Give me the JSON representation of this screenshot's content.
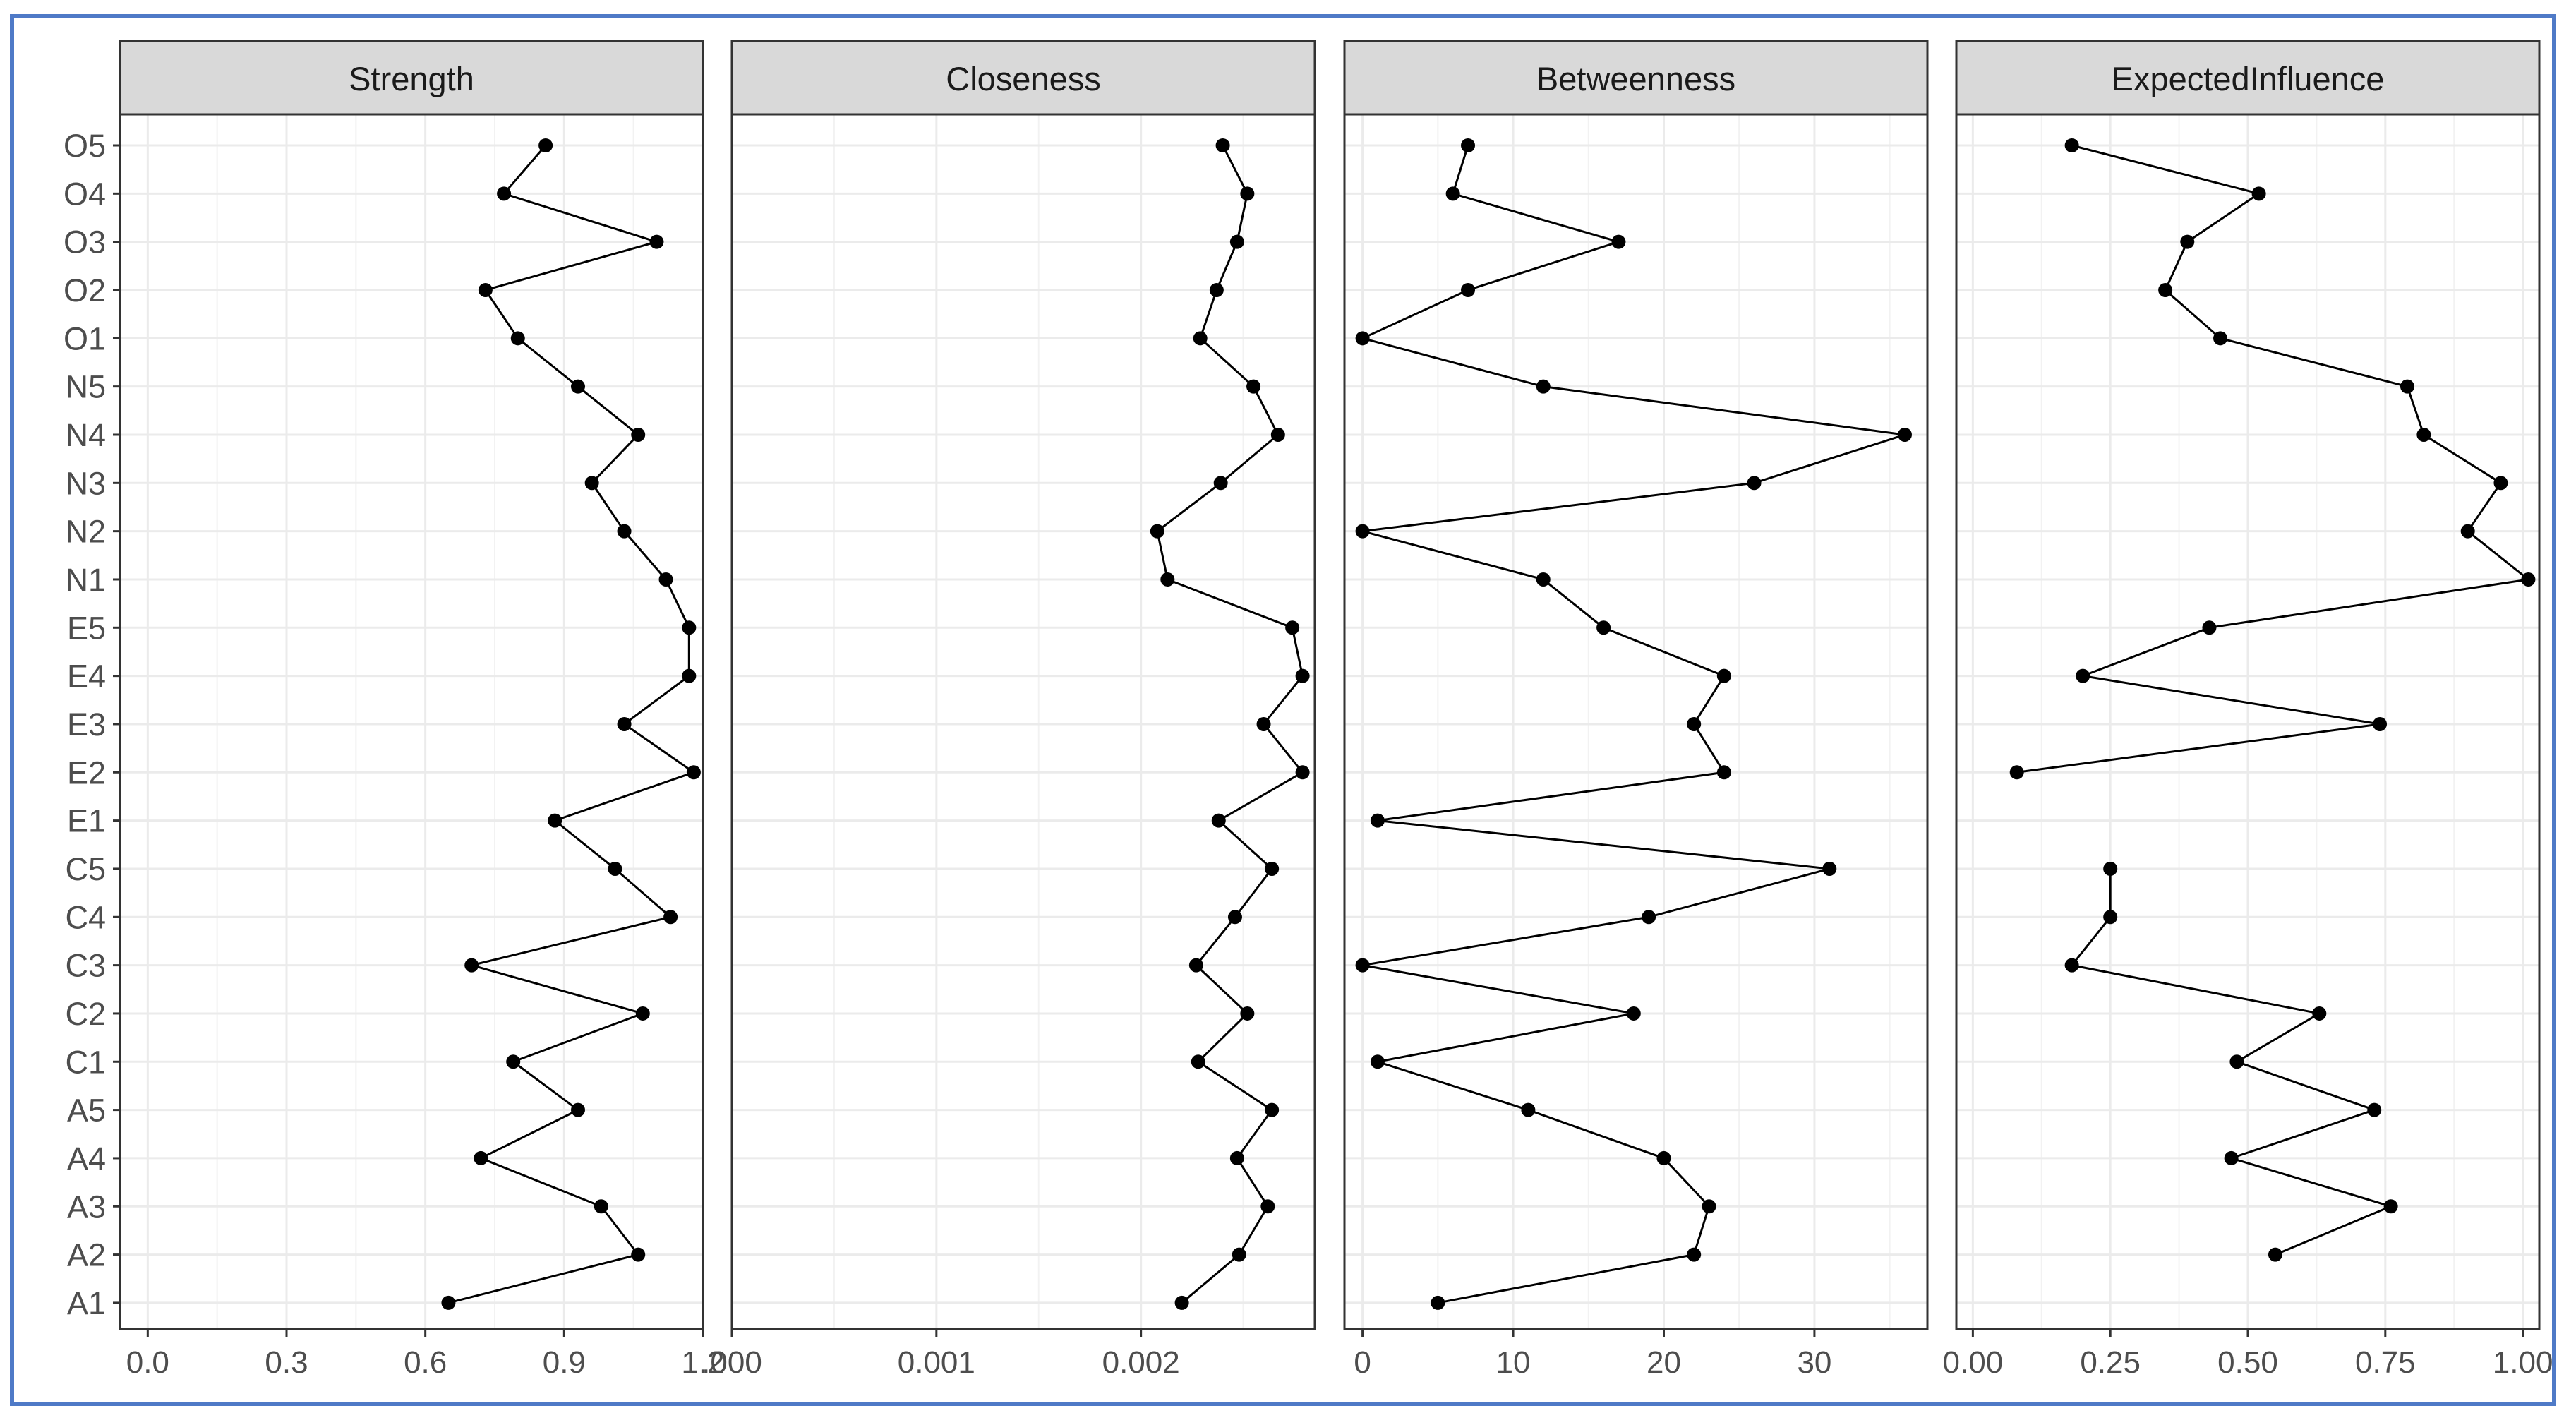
{
  "chart_data": {
    "type": "line",
    "orientation": "horizontal-facets",
    "categories": [
      "A1",
      "A2",
      "A3",
      "A4",
      "A5",
      "C1",
      "C2",
      "C3",
      "C4",
      "C5",
      "E1",
      "E2",
      "E3",
      "E4",
      "E5",
      "N1",
      "N2",
      "N3",
      "N4",
      "N5",
      "O1",
      "O2",
      "O3",
      "O4",
      "O5"
    ],
    "facets": [
      {
        "title": "Strength",
        "xlim": [
          -0.06,
          1.2
        ],
        "ticks": [
          0.0,
          0.3,
          0.6,
          0.9,
          1.2
        ],
        "tick_labels": [
          "0.0",
          "0.3",
          "0.6",
          "0.9",
          "1.2"
        ],
        "values": [
          0.65,
          1.06,
          0.98,
          0.72,
          0.93,
          0.79,
          1.07,
          0.7,
          1.13,
          1.01,
          0.88,
          1.18,
          1.03,
          1.17,
          1.17,
          1.12,
          1.03,
          0.96,
          1.06,
          0.93,
          0.8,
          0.73,
          1.1,
          0.77,
          0.86
        ]
      },
      {
        "title": "Closeness",
        "xlim": [
          0.0,
          0.00285
        ],
        "ticks": [
          0.0,
          0.001,
          0.002
        ],
        "tick_labels": [
          ".000",
          "0.001",
          "0.002"
        ],
        "values": [
          0.0022,
          0.00248,
          0.00262,
          0.00247,
          0.00264,
          0.00228,
          0.00252,
          0.00227,
          0.00246,
          0.00264,
          0.00238,
          0.00279,
          0.0026,
          0.00279,
          0.00274,
          0.00213,
          0.00208,
          0.00239,
          0.00267,
          0.00255,
          0.00229,
          0.00237,
          0.00247,
          0.00252,
          0.0024
        ]
      },
      {
        "title": "Betweenness",
        "xlim": [
          -1.2,
          37.5
        ],
        "ticks": [
          0,
          10,
          20,
          30
        ],
        "tick_labels": [
          "0",
          "10",
          "20",
          "30"
        ],
        "values": [
          5,
          22,
          23,
          20,
          11,
          1,
          18,
          0,
          19,
          31,
          1,
          24,
          22,
          24,
          16,
          12,
          0,
          26,
          36,
          12,
          0,
          7,
          17,
          6,
          7
        ]
      },
      {
        "title": "ExpectedInfluence",
        "xlim": [
          -0.03,
          1.03
        ],
        "ticks": [
          0.0,
          0.25,
          0.5,
          0.75,
          1.0
        ],
        "tick_labels": [
          "0.00",
          "0.25",
          "0.50",
          "0.75",
          "1.00"
        ],
        "values": [
          null,
          0.55,
          0.76,
          0.47,
          0.73,
          0.48,
          0.63,
          0.18,
          0.25,
          0.25,
          null,
          0.08,
          0.74,
          0.2,
          0.43,
          1.01,
          0.9,
          0.96,
          0.82,
          0.79,
          0.45,
          0.35,
          0.39,
          0.52,
          0.18
        ]
      }
    ],
    "grid": true,
    "legend": "none",
    "colors": {
      "line": "#000000",
      "point": "#000000",
      "strip": "#d9d9d9",
      "grid": "#ebebeb",
      "panel_border": "#333333",
      "text": "#4d4d4d",
      "frame": "#4f7ac7"
    }
  }
}
